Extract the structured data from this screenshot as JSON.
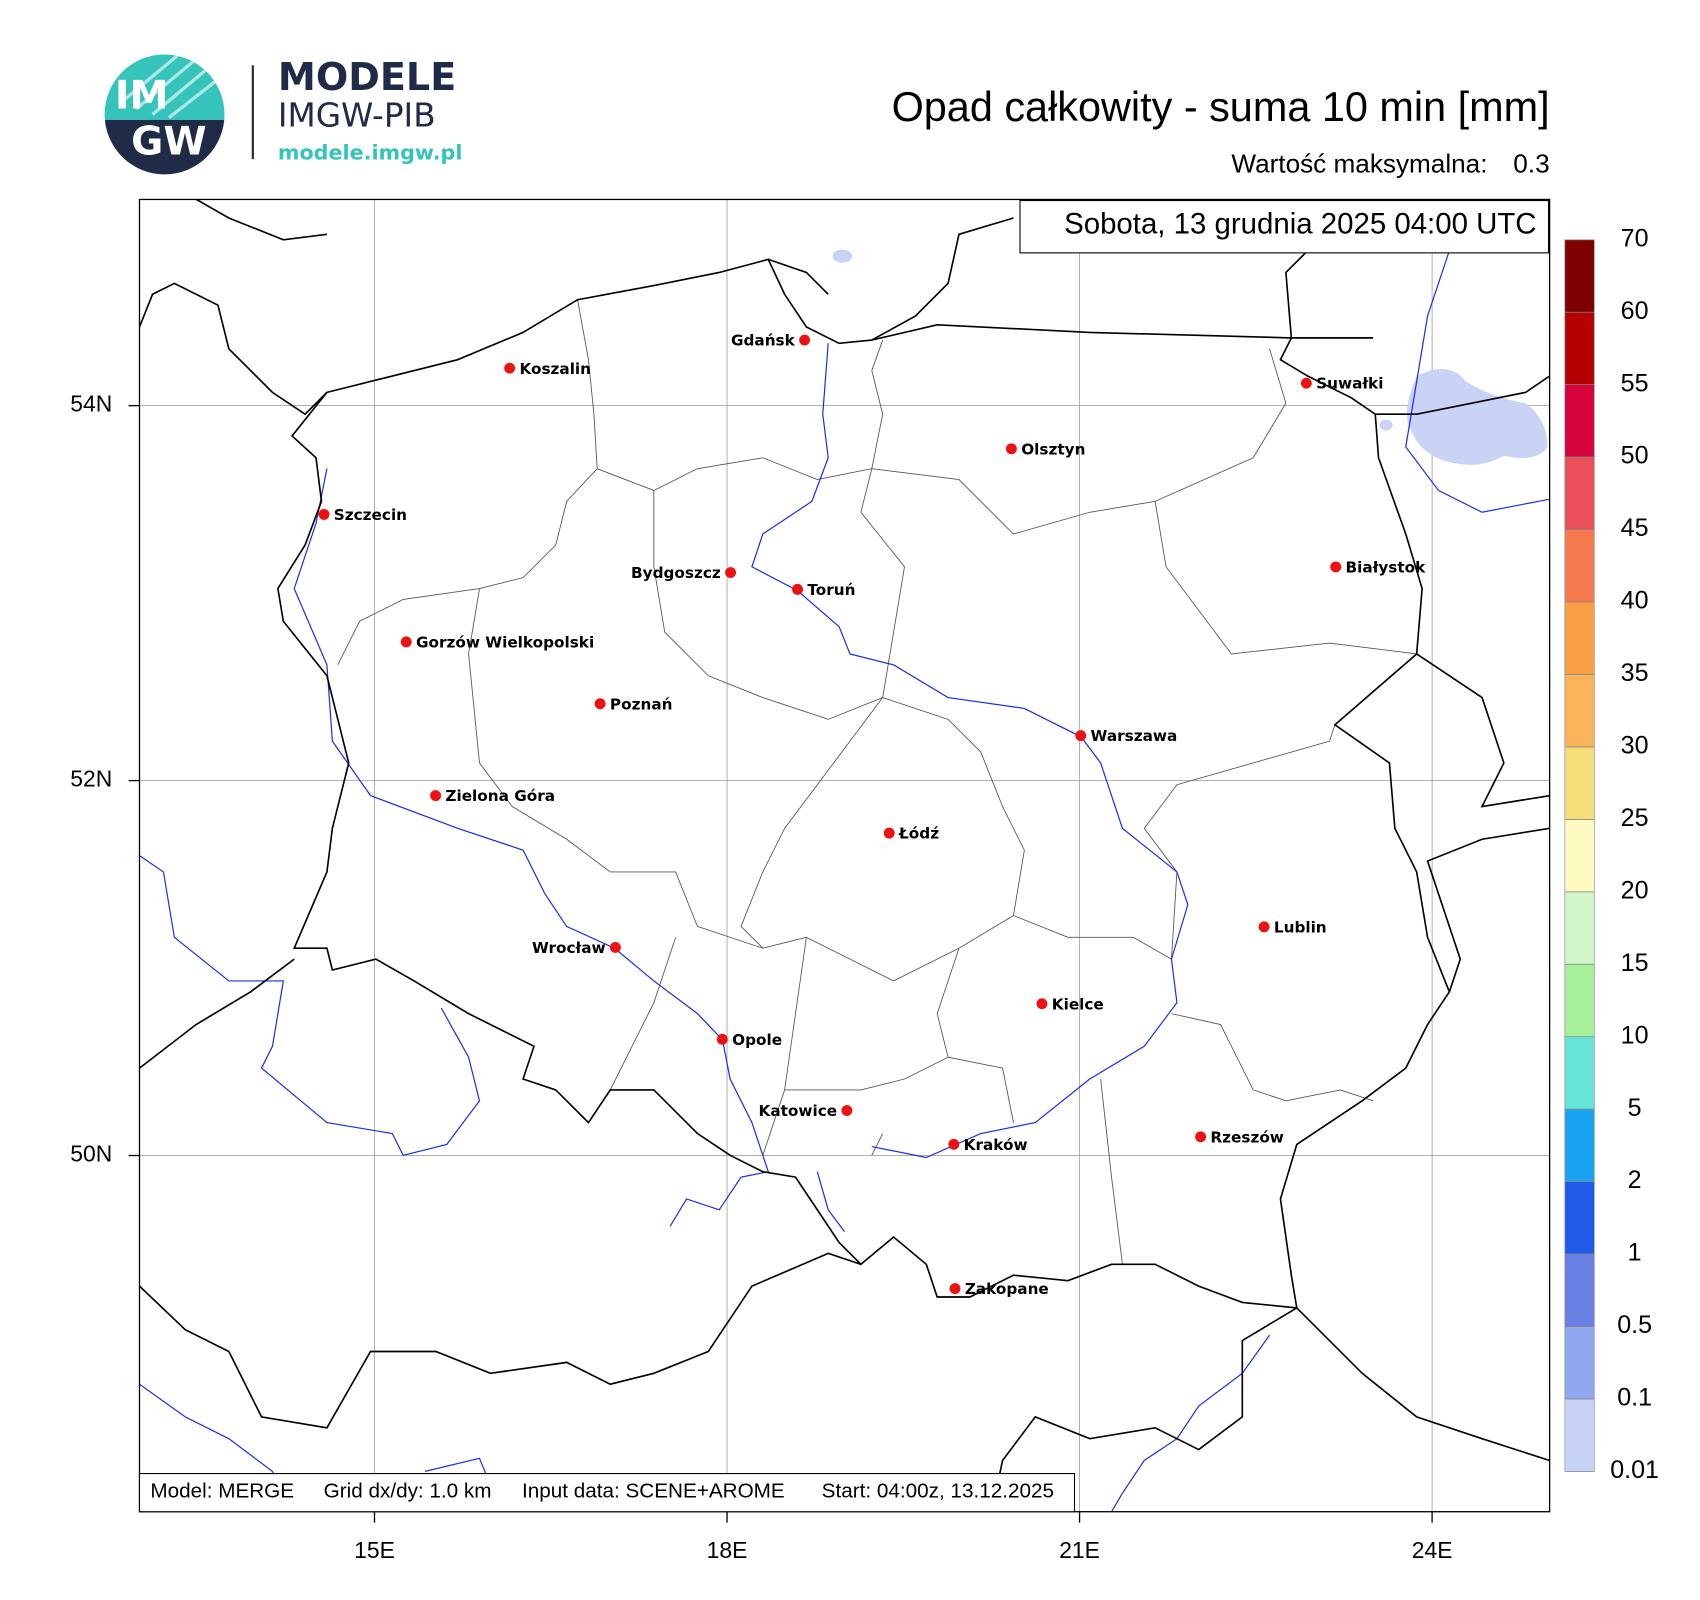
{
  "logo": {
    "mark_top": "IM",
    "mark_bottom": "GW",
    "name": "MODELE",
    "org": "IMGW-PIB",
    "url": "modele.imgw.pl"
  },
  "header": {
    "title": "Opad całkowity - suma 10 min [mm]",
    "max_label": "Wartość maksymalna:",
    "max_value": 0.3
  },
  "map": {
    "valid_time": "Sobota, 13 grudnia 2025 04:00 UTC",
    "xlim": [
      13,
      25
    ],
    "ylim": [
      48.1,
      55.1
    ],
    "xticks": [
      {
        "value": 15,
        "label": "15E"
      },
      {
        "value": 18,
        "label": "18E"
      },
      {
        "value": 21,
        "label": "21E"
      },
      {
        "value": 24,
        "label": "24E"
      }
    ],
    "yticks": [
      {
        "value": 50,
        "label": "50N"
      },
      {
        "value": 52,
        "label": "52N"
      },
      {
        "value": 54,
        "label": "54N"
      }
    ],
    "grid": true,
    "city_color": "#ee1111",
    "cities": [
      {
        "name": "Gdańsk",
        "lon": 18.66,
        "lat": 54.35
      },
      {
        "name": "Koszalin",
        "lon": 16.15,
        "lat": 54.2
      },
      {
        "name": "Suwałki",
        "lon": 22.93,
        "lat": 54.12
      },
      {
        "name": "Olsztyn",
        "lon": 20.42,
        "lat": 53.77
      },
      {
        "name": "Szczecin",
        "lon": 14.57,
        "lat": 53.42
      },
      {
        "name": "Białystok",
        "lon": 23.18,
        "lat": 53.14
      },
      {
        "name": "Bydgoszcz",
        "lon": 18.03,
        "lat": 53.11
      },
      {
        "name": "Toruń",
        "lon": 18.6,
        "lat": 53.02
      },
      {
        "name": "Gorzów Wielkopolski",
        "lon": 15.27,
        "lat": 52.74
      },
      {
        "name": "Poznań",
        "lon": 16.92,
        "lat": 52.41
      },
      {
        "name": "Warszawa",
        "lon": 21.01,
        "lat": 52.24
      },
      {
        "name": "Zielona Góra",
        "lon": 15.52,
        "lat": 51.92
      },
      {
        "name": "Łódź",
        "lon": 19.38,
        "lat": 51.72
      },
      {
        "name": "Lublin",
        "lon": 22.57,
        "lat": 51.22
      },
      {
        "name": "Wrocław",
        "lon": 17.05,
        "lat": 51.11
      },
      {
        "name": "Kielce",
        "lon": 20.68,
        "lat": 50.81
      },
      {
        "name": "Opole",
        "lon": 17.96,
        "lat": 50.62
      },
      {
        "name": "Katowice",
        "lon": 19.02,
        "lat": 50.24
      },
      {
        "name": "Rzeszów",
        "lon": 22.03,
        "lat": 50.1
      },
      {
        "name": "Kraków",
        "lon": 19.93,
        "lat": 50.06
      },
      {
        "name": "Zakopane",
        "lon": 19.94,
        "lat": 49.29
      }
    ]
  },
  "colorbar": {
    "levels": [
      0.01,
      0.1,
      0.5,
      1,
      2,
      5,
      10,
      15,
      20,
      25,
      30,
      35,
      40,
      45,
      50,
      55,
      60,
      70
    ],
    "colors": [
      "#c9d3f5",
      "#8fa8ef",
      "#6a7fe3",
      "#1f5be8",
      "#1aa3f0",
      "#64e5d8",
      "#a6f09c",
      "#d0f5c9",
      "#fdfbc0",
      "#f8de7a",
      "#fbb45a",
      "#fb9f45",
      "#f77a4e",
      "#e9505a",
      "#d6033c",
      "#b50000",
      "#7e0000"
    ]
  },
  "footer": {
    "model": "Model: MERGE",
    "grid": "Grid dx/dy: 1.0 km",
    "input": "Input data: SCENE+AROME",
    "start": "Start: 04:00z, 13.12.2025"
  }
}
